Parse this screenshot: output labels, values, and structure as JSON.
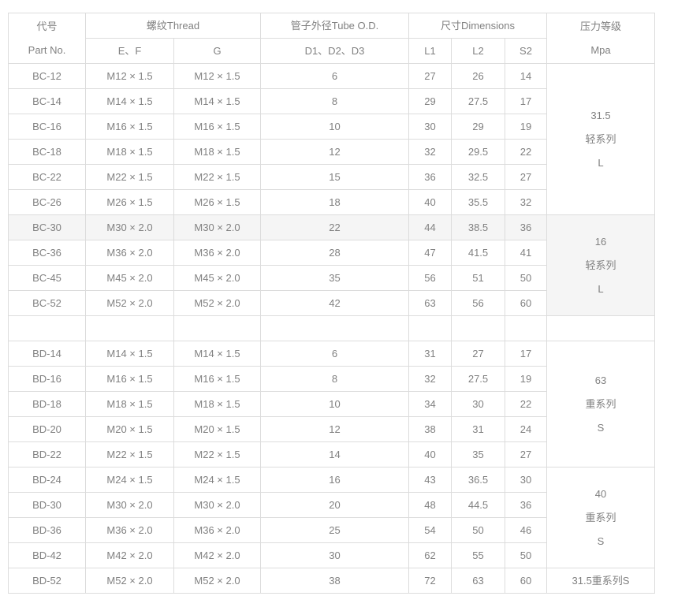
{
  "colors": {
    "border": "#dcdcdc",
    "text": "#818181",
    "row_highlight": "#f5f5f5",
    "background": "#ffffff"
  },
  "table": {
    "header": {
      "part_no_line1": "代号",
      "part_no_line2": "Part No.",
      "thread": "螺纹Thread",
      "ef": "E、F",
      "g": "G",
      "tube_od": "管子外径Tube O.D.",
      "d123": "D1、D2、D3",
      "dimensions": "尺寸Dimensions",
      "l1": "L1",
      "l2": "L2",
      "s2": "S2",
      "pressure_line1": "压力等级",
      "pressure_line2": "Mpa"
    },
    "rows": [
      {
        "part": "BC-12",
        "ef": "M12 × 1.5",
        "g": "M12 × 1.5",
        "d": "6",
        "l1": "27",
        "l2": "26",
        "s2": "14"
      },
      {
        "part": "BC-14",
        "ef": "M14 × 1.5",
        "g": "M14 × 1.5",
        "d": "8",
        "l1": "29",
        "l2": "27.5",
        "s2": "17"
      },
      {
        "part": "BC-16",
        "ef": "M16 × 1.5",
        "g": "M16 × 1.5",
        "d": "10",
        "l1": "30",
        "l2": "29",
        "s2": "19"
      },
      {
        "part": "BC-18",
        "ef": "M18 × 1.5",
        "g": "M18 × 1.5",
        "d": "12",
        "l1": "32",
        "l2": "29.5",
        "s2": "22"
      },
      {
        "part": "BC-22",
        "ef": "M22 × 1.5",
        "g": "M22 × 1.5",
        "d": "15",
        "l1": "36",
        "l2": "32.5",
        "s2": "27"
      },
      {
        "part": "BC-26",
        "ef": "M26 × 1.5",
        "g": "M26 × 1.5",
        "d": "18",
        "l1": "40",
        "l2": "35.5",
        "s2": "32"
      },
      {
        "part": "BC-30",
        "ef": "M30 × 2.0",
        "g": "M30 × 2.0",
        "d": "22",
        "l1": "44",
        "l2": "38.5",
        "s2": "36",
        "highlight": true
      },
      {
        "part": "BC-36",
        "ef": "M36 × 2.0",
        "g": "M36 × 2.0",
        "d": "28",
        "l1": "47",
        "l2": "41.5",
        "s2": "41"
      },
      {
        "part": "BC-45",
        "ef": "M45 × 2.0",
        "g": "M45 × 2.0",
        "d": "35",
        "l1": "56",
        "l2": "51",
        "s2": "50"
      },
      {
        "part": "BC-52",
        "ef": "M52 × 2.0",
        "g": "M52 × 2.0",
        "d": "42",
        "l1": "63",
        "l2": "56",
        "s2": "60"
      },
      {
        "part": "",
        "ef": "",
        "g": "",
        "d": "",
        "l1": "",
        "l2": "",
        "s2": ""
      },
      {
        "part": "BD-14",
        "ef": "M14 × 1.5",
        "g": "M14 × 1.5",
        "d": "6",
        "l1": "31",
        "l2": "27",
        "s2": "17"
      },
      {
        "part": "BD-16",
        "ef": "M16 × 1.5",
        "g": "M16 × 1.5",
        "d": "8",
        "l1": "32",
        "l2": "27.5",
        "s2": "19"
      },
      {
        "part": "BD-18",
        "ef": "M18 × 1.5",
        "g": "M18 × 1.5",
        "d": "10",
        "l1": "34",
        "l2": "30",
        "s2": "22"
      },
      {
        "part": "BD-20",
        "ef": "M20 × 1.5",
        "g": "M20 × 1.5",
        "d": "12",
        "l1": "38",
        "l2": "31",
        "s2": "24"
      },
      {
        "part": "BD-22",
        "ef": "M22 × 1.5",
        "g": "M22 × 1.5",
        "d": "14",
        "l1": "40",
        "l2": "35",
        "s2": "27"
      },
      {
        "part": "BD-24",
        "ef": "M24 × 1.5",
        "g": "M24 × 1.5",
        "d": "16",
        "l1": "43",
        "l2": "36.5",
        "s2": "30"
      },
      {
        "part": "BD-30",
        "ef": "M30 × 2.0",
        "g": "M30 × 2.0",
        "d": "20",
        "l1": "48",
        "l2": "44.5",
        "s2": "36"
      },
      {
        "part": "BD-36",
        "ef": "M36 × 2.0",
        "g": "M36 × 2.0",
        "d": "25",
        "l1": "54",
        "l2": "50",
        "s2": "46"
      },
      {
        "part": "BD-42",
        "ef": "M42 × 2.0",
        "g": "M42 × 2.0",
        "d": "30",
        "l1": "62",
        "l2": "55",
        "s2": "50"
      },
      {
        "part": "BD-52",
        "ef": "M52 × 2.0",
        "g": "M52 × 2.0",
        "d": "38",
        "l1": "72",
        "l2": "63",
        "s2": "60"
      }
    ],
    "pressure_groups": [
      {
        "start": 0,
        "rows": 6,
        "lines": [
          "31.5",
          "轻系列",
          "L"
        ]
      },
      {
        "start": 6,
        "rows": 4,
        "lines": [
          "16",
          "轻系列",
          "L"
        ],
        "highlight": true
      },
      {
        "start": 10,
        "rows": 1,
        "lines": []
      },
      {
        "start": 11,
        "rows": 5,
        "lines": [
          "63",
          "重系列",
          "S"
        ]
      },
      {
        "start": 16,
        "rows": 4,
        "lines": [
          "40",
          "重系列",
          "S"
        ]
      },
      {
        "start": 20,
        "rows": 1,
        "lines": [
          "31.5重系列S"
        ]
      }
    ]
  }
}
